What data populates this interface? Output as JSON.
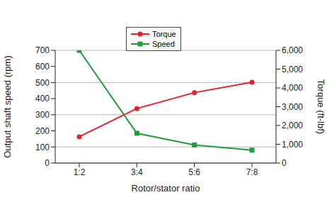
{
  "chart_data": {
    "type": "line",
    "x_label": "Rotor/stator ratio",
    "y_label": "Output shaft speed (rpm)",
    "y2_label": "Torque (ft-lbf)",
    "categories": [
      "1:2",
      "3:4",
      "5:6",
      "7:8"
    ],
    "series": [
      {
        "name": "Torque",
        "color": "#e5202a",
        "marker": "circle",
        "axis": "y2",
        "values": [
          1400,
          2900,
          3750,
          4300
        ]
      },
      {
        "name": "Speed",
        "color": "#1f9e3b",
        "marker": "square",
        "values": [
          700,
          185,
          112,
          80
        ]
      }
    ],
    "ylim": [
      0,
      700
    ],
    "yticks": [
      0,
      100,
      200,
      300,
      400,
      500,
      600,
      700
    ],
    "y2lim": [
      0,
      6000
    ],
    "y2ticks": [
      0,
      {
        "value": 1000,
        "label": "1,000"
      },
      {
        "value": 2000,
        "label": "2,000"
      },
      {
        "value": 3000,
        "label": "3,000"
      },
      {
        "value": 4000,
        "label": "4,000"
      },
      {
        "value": 5000,
        "label": "5,000"
      },
      {
        "value": 6000,
        "label": "6,000"
      }
    ],
    "grid": true,
    "legend": "upper center"
  }
}
